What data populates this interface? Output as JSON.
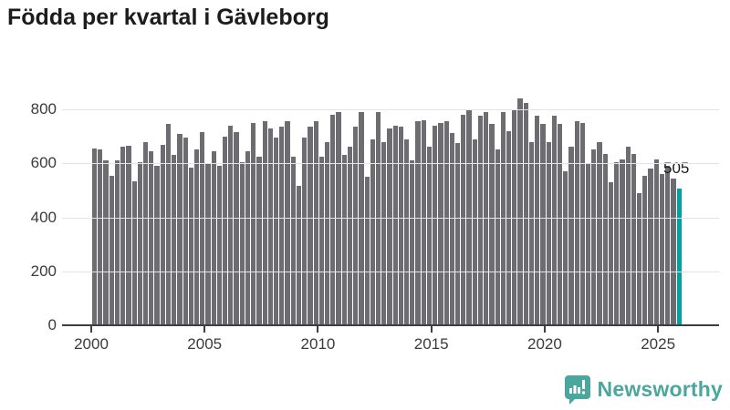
{
  "title": "Födda per kvartal i Gävleborg",
  "chart_data": {
    "type": "bar",
    "title": "Födda per kvartal i Gävleborg",
    "frequency": "quarterly",
    "x_start": "2000-Q1",
    "x_end": "2025-Q4",
    "xlabel": "",
    "ylabel": "",
    "ylim": [
      0,
      800
    ],
    "yticks": [
      0,
      200,
      400,
      600,
      800
    ],
    "xticks": [
      2000,
      2005,
      2010,
      2015,
      2020,
      2025
    ],
    "grid": "horizontal",
    "bar_color": "#6d6c70",
    "values": [
      655,
      650,
      610,
      555,
      610,
      660,
      665,
      535,
      605,
      680,
      645,
      590,
      670,
      745,
      630,
      710,
      695,
      585,
      650,
      715,
      600,
      645,
      590,
      700,
      740,
      715,
      605,
      645,
      750,
      625,
      755,
      730,
      695,
      735,
      755,
      625,
      515,
      695,
      735,
      755,
      625,
      680,
      780,
      790,
      630,
      660,
      735,
      790,
      550,
      690,
      790,
      678,
      730,
      740,
      735,
      690,
      610,
      755,
      760,
      660,
      740,
      750,
      755,
      713,
      675,
      780,
      800,
      690,
      775,
      790,
      745,
      650,
      790,
      720,
      795,
      840,
      825,
      680,
      775,
      745,
      680,
      775,
      745,
      570,
      660,
      755,
      748,
      600,
      650,
      680,
      635,
      530,
      605,
      615,
      660,
      635,
      490,
      553,
      580,
      615,
      560,
      590,
      545,
      505
    ],
    "highlight": {
      "index": 103,
      "value": 505,
      "label": "505",
      "color": "#00a1a5"
    }
  },
  "annotation": {
    "last_value_label": "505"
  },
  "branding": {
    "logo_text": "Newsworthy",
    "logo_color": "#4ba79e"
  }
}
